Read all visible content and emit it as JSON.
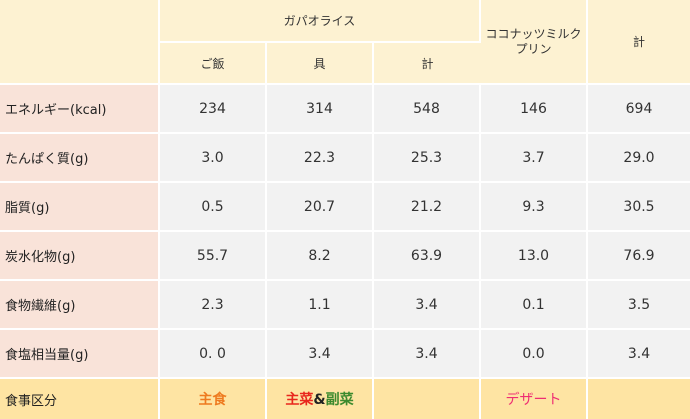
{
  "header": {
    "gapao_group": "ガパオライス",
    "coconut": "ココナッツミルクプリン",
    "total": "計",
    "sub": [
      "ご飯",
      "具",
      "計"
    ]
  },
  "rows": [
    {
      "label": "エネルギー(kcal)",
      "values": [
        "234",
        "314",
        "548",
        "146",
        "694"
      ]
    },
    {
      "label": "たんぱく質(g)",
      "values": [
        "3.0",
        "22.3",
        "25.3",
        "3.7",
        "29.0"
      ]
    },
    {
      "label": "脂質(g)",
      "values": [
        "0.5",
        "20.7",
        "21.2",
        "9.3",
        "30.5"
      ]
    },
    {
      "label": "炭水化物(g)",
      "values": [
        "55.7",
        "8.2",
        "63.9",
        "13.0",
        "76.9"
      ]
    },
    {
      "label": "食物繊維(g)",
      "values": [
        "2.3",
        "1.1",
        "3.4",
        "0.1",
        "3.5"
      ]
    },
    {
      "label": "食塩相当量(g)",
      "values": [
        "0. 0",
        "3.4",
        "3.4",
        "0.0",
        "3.4"
      ]
    }
  ],
  "footer": {
    "label": "食事区分",
    "staple": "主食",
    "main": "主菜",
    "amp": "&",
    "side": "副菜",
    "dessert": "デザート"
  },
  "colors": {
    "header_bg": "#fdf2d2",
    "label_bg": "#f9e3d9",
    "value_bg": "#f2f2f2",
    "footer_bg": "#fee4a3",
    "staple": "#ee7a1f",
    "main": "#e8261d",
    "side": "#3c8a2e",
    "dessert": "#ee2e73"
  }
}
